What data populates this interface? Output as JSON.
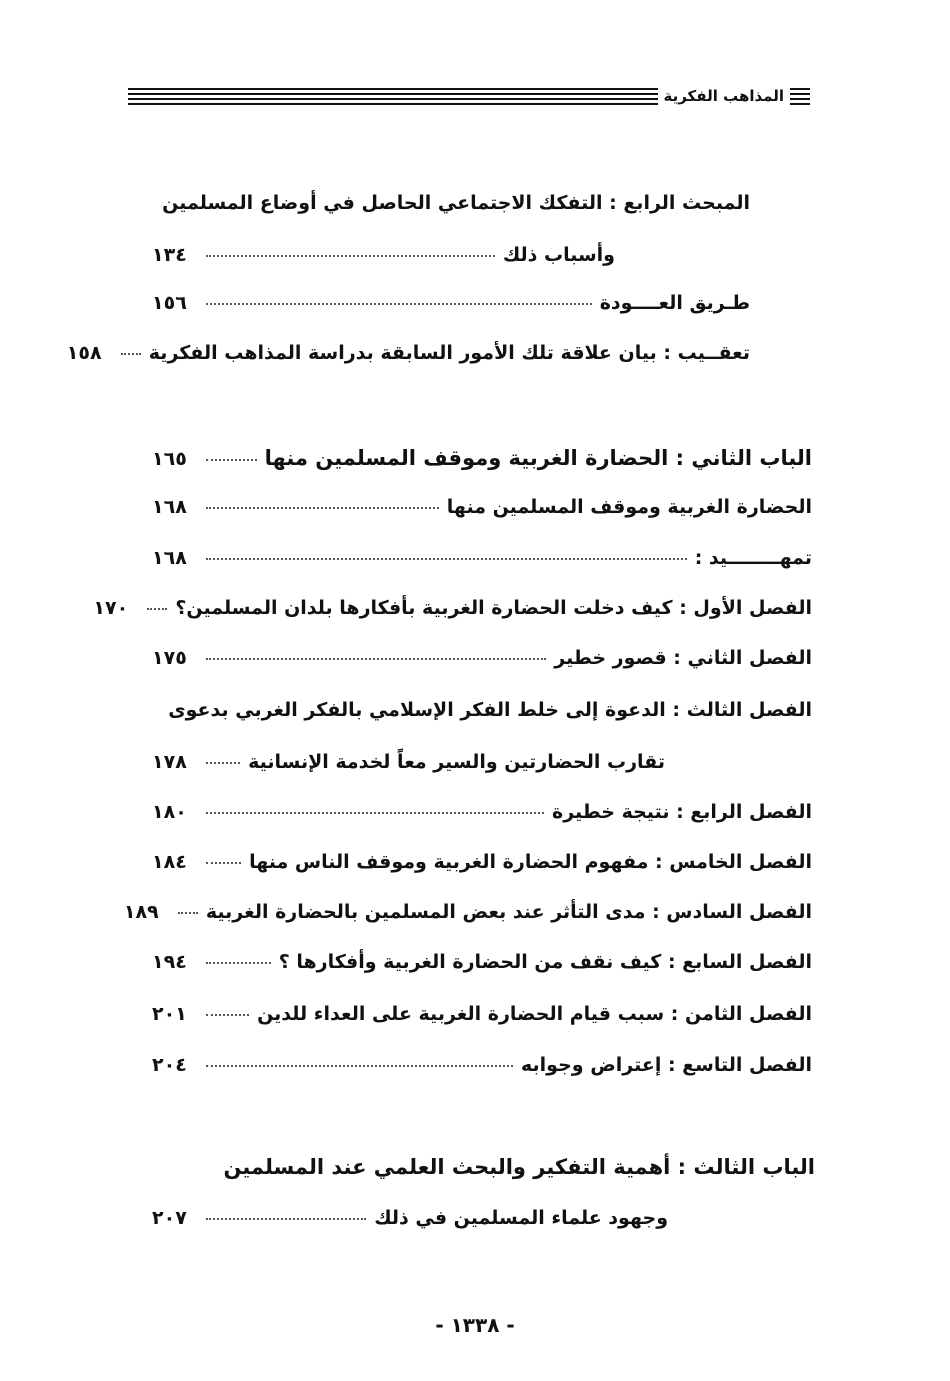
{
  "header": {
    "title": "المذاهب الفكرية"
  },
  "rows": [
    {
      "text": "المبحث الرابع : التفكك الاجتماعي الحاصل في أوضاع المسلمين",
      "page": ""
    },
    {
      "text": "وأسباب ذلك",
      "page": "١٣٤"
    },
    {
      "text": "طـريق العــــودة",
      "page": "١٥٦"
    },
    {
      "text": "تعقــيب : بيان علاقة تلك الأمور السابقة بدراسة المذاهب الفكرية",
      "page": "١٥٨"
    },
    {
      "text": "الباب الثاني : الحضارة الغربية وموقف المسلمين منها",
      "page": "١٦٥"
    },
    {
      "text": "الحضارة الغربية وموقف المسلمين منها",
      "page": "١٦٨"
    },
    {
      "text": "تمهــــــــيد :",
      "page": "١٦٨"
    },
    {
      "text": "الفصل الأول : كيف دخلت الحضارة الغربية بأفكارها بلدان المسلمين؟",
      "page": "١٧٠"
    },
    {
      "text": "الفصل الثاني : قصور خطير",
      "page": "١٧٥"
    },
    {
      "text": "الفصل الثالث : الدعوة إلى خلط الفكر الإسلامي بالفكر الغربي بدعوى",
      "page": ""
    },
    {
      "text": "تقارب الحضارتين والسير معاً لخدمة الإنسانية",
      "page": "١٧٨"
    },
    {
      "text": "الفصل الرابع : نتيجة خطيرة",
      "page": "١٨٠"
    },
    {
      "text": "الفصل الخامس : مفهوم الحضارة الغربية وموقف الناس منها",
      "page": "١٨٤"
    },
    {
      "text": "الفصل السادس : مدى التأثر عند بعض المسلمين بالحضارة الغربية",
      "page": "١٨٩"
    },
    {
      "text": "الفصل السابع : كيف نقف من الحضارة الغربية وأفكارها ؟",
      "page": "١٩٤"
    },
    {
      "text": "الفصل الثامن : سبب قيام الحضارة الغربية على العداء للدين",
      "page": "٢٠١"
    },
    {
      "text": "الفصل التاسع : إعتراض وجوابه",
      "page": "٢٠٤"
    },
    {
      "text": "الباب الثالث : أهمية التفكير والبحث العلمي عند المسلمين",
      "page": ""
    },
    {
      "text": "وجهود علماء المسلمين في ذلك",
      "page": "٢٠٧"
    }
  ],
  "footer": {
    "page_number": "- ١٣٣٨ -"
  }
}
